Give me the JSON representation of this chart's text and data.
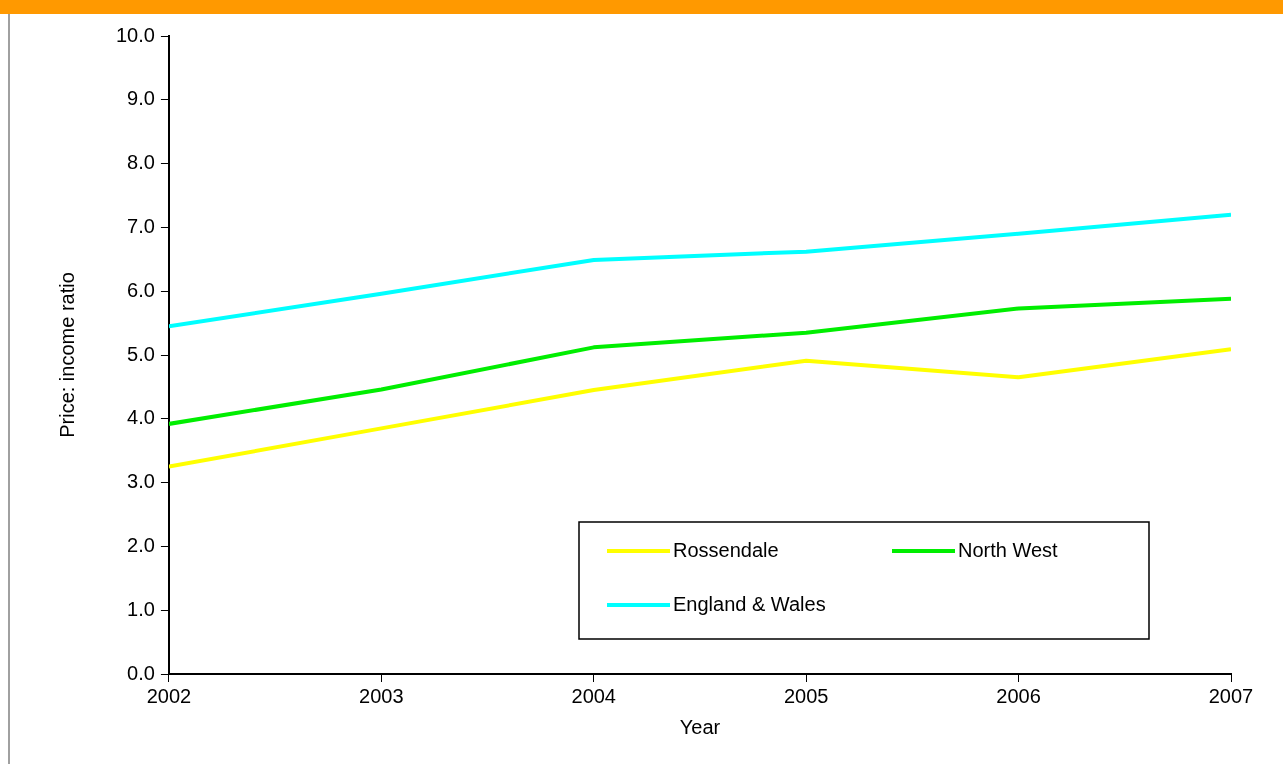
{
  "chart_data": {
    "type": "line",
    "xlabel": "Year",
    "ylabel": "Price: income ratio",
    "x": [
      2002,
      2003,
      2004,
      2005,
      2006,
      2007
    ],
    "series": [
      {
        "name": "Rossendale",
        "color": "#ffff00",
        "values": [
          3.25,
          3.85,
          4.45,
          4.91,
          4.65,
          5.09
        ]
      },
      {
        "name": "North West",
        "color": "#00ee00",
        "values": [
          3.92,
          4.46,
          5.12,
          5.35,
          5.73,
          5.88
        ]
      },
      {
        "name": "England & Wales",
        "color": "#00ffff",
        "values": [
          5.45,
          5.96,
          6.49,
          6.62,
          6.9,
          7.2
        ]
      }
    ],
    "xlim": [
      2002,
      2007
    ],
    "xticks": [
      2002,
      2003,
      2004,
      2005,
      2006,
      2007
    ],
    "ylim": [
      0,
      10
    ],
    "yticks": [
      {
        "value": 0,
        "label": "0.0"
      },
      {
        "value": 1,
        "label": "1.0"
      },
      {
        "value": 2,
        "label": "2.0"
      },
      {
        "value": 3,
        "label": "3.0"
      },
      {
        "value": 4,
        "label": "4.0"
      },
      {
        "value": 5,
        "label": "5.0"
      },
      {
        "value": 6,
        "label": "6.0"
      },
      {
        "value": 7,
        "label": "7.0"
      },
      {
        "value": 8,
        "label": "8.0"
      },
      {
        "value": 9,
        "label": "9.0"
      },
      {
        "value": 10,
        "label": "10.0"
      }
    ],
    "grid": false,
    "legend": "bottom right",
    "marker": "none",
    "line_style": "solid"
  }
}
